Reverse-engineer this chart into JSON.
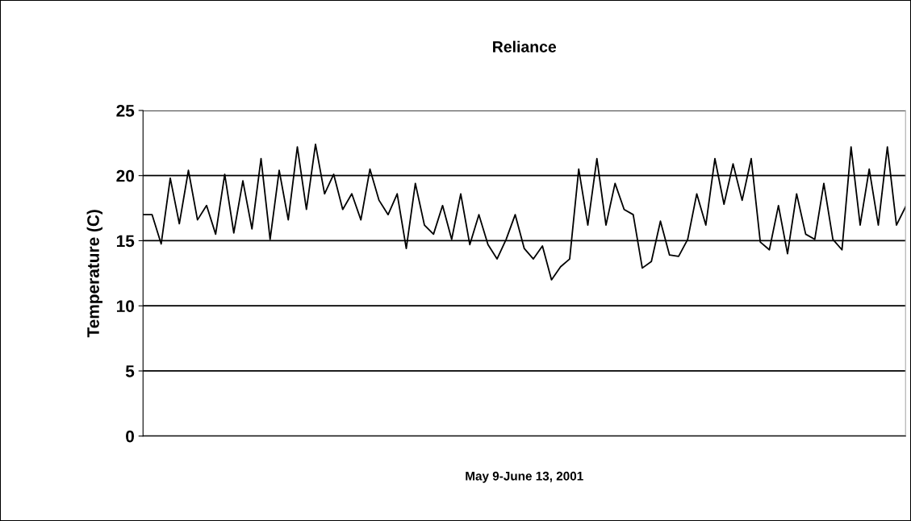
{
  "chart_data": {
    "type": "line",
    "title": "Reliance",
    "xlabel": "May 9-June 13, 2001",
    "ylabel": "Temperature (C)",
    "categories": [
      null,
      null,
      null,
      null,
      null,
      null,
      null,
      null,
      null,
      null,
      null,
      null,
      null,
      null,
      null,
      null,
      null,
      null,
      null,
      null,
      null,
      null,
      null,
      null,
      null,
      null,
      null,
      null,
      null,
      null,
      null,
      null,
      null,
      null,
      null,
      null,
      null,
      null,
      null,
      null,
      null,
      null,
      null,
      null,
      null,
      null,
      null,
      null,
      null,
      null,
      null,
      null,
      null,
      null,
      null,
      null,
      null,
      null,
      null,
      null,
      null,
      null,
      null,
      null,
      null,
      null,
      null,
      null,
      null,
      null,
      null,
      null,
      null,
      null,
      null,
      null,
      null,
      null,
      null,
      null,
      null,
      null,
      null,
      null,
      null
    ],
    "series": [
      {
        "color": "#000000",
        "values": [
          17.0,
          17.0,
          14.75,
          19.8,
          16.3,
          20.4,
          16.6,
          17.7,
          15.5,
          20.1,
          15.6,
          19.6,
          15.9,
          21.3,
          15.1,
          20.4,
          16.6,
          22.2,
          17.4,
          22.4,
          18.6,
          20.1,
          17.4,
          18.6,
          16.6,
          20.5,
          18.1,
          17.0,
          18.6,
          14.4,
          19.4,
          16.2,
          15.5,
          17.7,
          15.1,
          18.6,
          14.7,
          17.0,
          14.7,
          13.6,
          15.1,
          17.0,
          14.4,
          13.6,
          14.6,
          12.0,
          13.0,
          13.6,
          20.5,
          16.2,
          21.3,
          16.2,
          19.4,
          17.4,
          17.0,
          12.9,
          13.4,
          16.5,
          13.9,
          13.8,
          15.1,
          18.6,
          16.2,
          21.3,
          17.8,
          20.9,
          18.1,
          21.3,
          14.9,
          14.3,
          17.7,
          14.0,
          18.6,
          15.5,
          15.1,
          19.4,
          15.1,
          14.3,
          22.2,
          16.2,
          20.5,
          16.2,
          22.2,
          16.2,
          17.6
        ]
      }
    ],
    "ylim": [
      0,
      25
    ],
    "yticks": [
      0,
      5,
      10,
      15,
      20,
      25
    ],
    "grid": "y",
    "tick_labels": "y",
    "legend": false
  }
}
